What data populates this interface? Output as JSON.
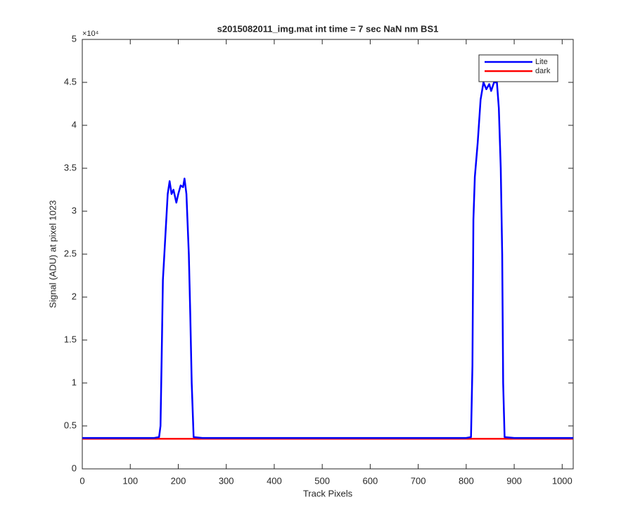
{
  "chart_data": {
    "type": "line",
    "title": "s2015082011_img.mat int time = 7 sec  NaN nm BS1",
    "x_label": "Track Pixels",
    "y_label": "Signal (ADU) at pixel 1023",
    "y_exponent_label": "×10⁴",
    "x": [
      0,
      50,
      100,
      150,
      160,
      163,
      166,
      168,
      172,
      178,
      182,
      186,
      190,
      196,
      200,
      205,
      210,
      213,
      217,
      222,
      225,
      228,
      232,
      250,
      300,
      400,
      500,
      600,
      700,
      800,
      810,
      813,
      815,
      818,
      824,
      830,
      836,
      842,
      848,
      852,
      858,
      864,
      868,
      872,
      875,
      877,
      880,
      900,
      950,
      1000,
      1023
    ],
    "series": [
      {
        "name": "Lite",
        "color": "#0000ff",
        "values": [
          0.36,
          0.36,
          0.36,
          0.36,
          0.37,
          0.5,
          1.5,
          2.2,
          2.6,
          3.2,
          3.35,
          3.2,
          3.25,
          3.1,
          3.2,
          3.3,
          3.28,
          3.38,
          3.2,
          2.5,
          1.8,
          1.0,
          0.37,
          0.36,
          0.36,
          0.36,
          0.36,
          0.36,
          0.36,
          0.36,
          0.37,
          1.2,
          2.9,
          3.4,
          3.8,
          4.3,
          4.5,
          4.42,
          4.48,
          4.4,
          4.5,
          4.5,
          4.2,
          3.5,
          2.5,
          1.0,
          0.37,
          0.36,
          0.36,
          0.36,
          0.36
        ]
      },
      {
        "name": "dark",
        "color": "#ff0000",
        "values": [
          0.35,
          0.35,
          0.35,
          0.35,
          0.35,
          0.35,
          0.35,
          0.35,
          0.35,
          0.35,
          0.35,
          0.35,
          0.35,
          0.35,
          0.35,
          0.35,
          0.35,
          0.35,
          0.35,
          0.35,
          0.35,
          0.35,
          0.35,
          0.35,
          0.35,
          0.35,
          0.35,
          0.35,
          0.35,
          0.35,
          0.35,
          0.35,
          0.35,
          0.35,
          0.35,
          0.35,
          0.35,
          0.35,
          0.35,
          0.35,
          0.35,
          0.35,
          0.35,
          0.35,
          0.35,
          0.35,
          0.35,
          0.35,
          0.35,
          0.35,
          0.35
        ]
      }
    ],
    "xlim": [
      0,
      1023
    ],
    "xticks": [
      0,
      100,
      200,
      300,
      400,
      500,
      600,
      700,
      800,
      900,
      1000
    ],
    "ylim": [
      0,
      5
    ],
    "yticks": [
      0,
      0.5,
      1,
      1.5,
      2,
      2.5,
      3,
      3.5,
      4,
      4.5,
      5
    ],
    "grid": false,
    "legend": "northeast"
  }
}
